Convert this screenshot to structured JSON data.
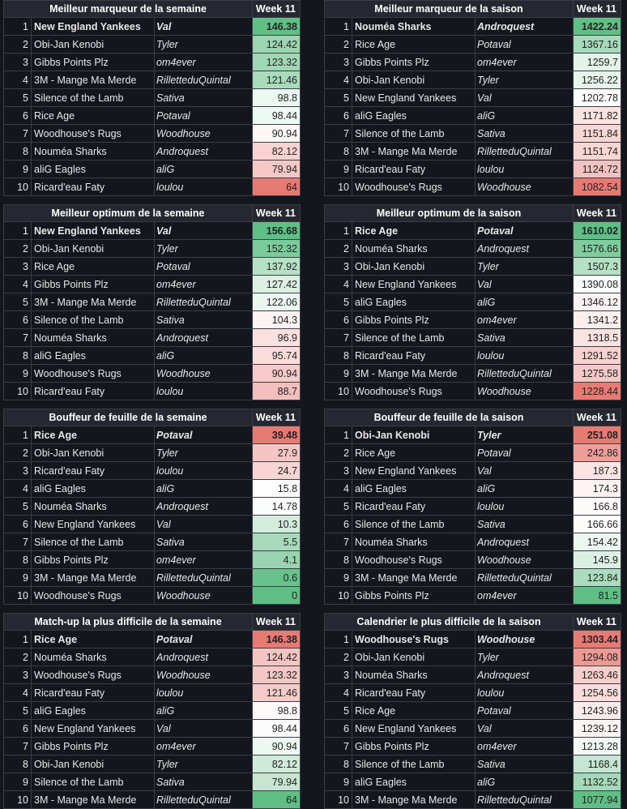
{
  "tables": [
    {
      "title": "Meilleur marqueur de la semaine",
      "week": "Week 11",
      "rows": [
        {
          "rank": "1",
          "team": "New England Yankees",
          "owner": "Val",
          "value": "146.38",
          "color": "#5fbf85"
        },
        {
          "rank": "2",
          "team": "Obi-Jan Kenobi",
          "owner": "Tyler",
          "value": "124.42",
          "color": "#9bd6b1"
        },
        {
          "rank": "3",
          "team": "Gibbs Points Plz",
          "owner": "om4ever",
          "value": "123.32",
          "color": "#9fd7b4"
        },
        {
          "rank": "4",
          "team": "3M - Mange Ma Merde",
          "owner": "RilletteduQuintal",
          "value": "121.46",
          "color": "#a7dbbb"
        },
        {
          "rank": "5",
          "team": "Silence of the Lamb",
          "owner": "Sativa",
          "value": "98.8",
          "color": "#eef8f2"
        },
        {
          "rank": "6",
          "team": "Rice Age",
          "owner": "Potaval",
          "value": "98.44",
          "color": "#eff9f3"
        },
        {
          "rank": "7",
          "team": "Woodhouse's Rugs",
          "owner": "Woodhouse",
          "value": "90.94",
          "color": "#fdf7f7"
        },
        {
          "rank": "8",
          "team": "Nouméa Sharks",
          "owner": "Androquest",
          "value": "82.12",
          "color": "#f8d3d2"
        },
        {
          "rank": "9",
          "team": "aliG Eagles",
          "owner": "aliG",
          "value": "79.94",
          "color": "#f5c8c6"
        },
        {
          "rank": "10",
          "team": "Ricard'eau Faty",
          "owner": "loulou",
          "value": "64",
          "color": "#e87a74"
        }
      ]
    },
    {
      "title": "Meilleur marqueur de la saison",
      "week": "Week 11",
      "rows": [
        {
          "rank": "1",
          "team": "Nouméa Sharks",
          "owner": "Androquest",
          "value": "1422.24",
          "color": "#5fbf85"
        },
        {
          "rank": "2",
          "team": "Rice Age",
          "owner": "Potaval",
          "value": "1367.16",
          "color": "#a6dabb"
        },
        {
          "rank": "3",
          "team": "Gibbs Points Plz",
          "owner": "om4ever",
          "value": "1259.7",
          "color": "#e3f3e9"
        },
        {
          "rank": "4",
          "team": "Obi-Jan Kenobi",
          "owner": "Tyler",
          "value": "1256.22",
          "color": "#e6f5ec"
        },
        {
          "rank": "5",
          "team": "New England Yankees",
          "owner": "Val",
          "value": "1202.78",
          "color": "#fefcfc"
        },
        {
          "rank": "6",
          "team": "aliG Eagles",
          "owner": "aliG",
          "value": "1171.82",
          "color": "#fbe3e2"
        },
        {
          "rank": "7",
          "team": "Silence of the Lamb",
          "owner": "Sativa",
          "value": "1151.84",
          "color": "#f8d6d4"
        },
        {
          "rank": "8",
          "team": "3M - Mange Ma Merde",
          "owner": "RilletteduQuintal",
          "value": "1151.74",
          "color": "#f8d6d4"
        },
        {
          "rank": "9",
          "team": "Ricard'eau Faty",
          "owner": "loulou",
          "value": "1124.72",
          "color": "#f3c2c0"
        },
        {
          "rank": "10",
          "team": "Woodhouse's Rugs",
          "owner": "Woodhouse",
          "value": "1082.54",
          "color": "#e87a74"
        }
      ]
    },
    {
      "title": "Meilleur optimum de la semaine",
      "week": "Week 11",
      "rows": [
        {
          "rank": "1",
          "team": "New England Yankees",
          "owner": "Val",
          "value": "156.68",
          "color": "#5fbf85"
        },
        {
          "rank": "2",
          "team": "Obi-Jan Kenobi",
          "owner": "Tyler",
          "value": "152.32",
          "color": "#7acb9a"
        },
        {
          "rank": "3",
          "team": "Rice Age",
          "owner": "Potaval",
          "value": "137.92",
          "color": "#b7e1c7"
        },
        {
          "rank": "4",
          "team": "Gibbs Points Plz",
          "owner": "om4ever",
          "value": "127.42",
          "color": "#dcefe3"
        },
        {
          "rank": "5",
          "team": "3M - Mange Ma Merde",
          "owner": "RilletteduQuintal",
          "value": "122.06",
          "color": "#eaf6ef"
        },
        {
          "rank": "6",
          "team": "Silence of the Lamb",
          "owner": "Sativa",
          "value": "104.3",
          "color": "#fdf3f3"
        },
        {
          "rank": "7",
          "team": "Nouméa Sharks",
          "owner": "Androquest",
          "value": "96.9",
          "color": "#fbe0df"
        },
        {
          "rank": "8",
          "team": "aliG Eagles",
          "owner": "aliG",
          "value": "95.74",
          "color": "#fadcdb"
        },
        {
          "rank": "9",
          "team": "Woodhouse's Rugs",
          "owner": "Woodhouse",
          "value": "90.94",
          "color": "#f5cac8"
        },
        {
          "rank": "10",
          "team": "Ricard'eau Faty",
          "owner": "loulou",
          "value": "88.7",
          "color": "#f2bfbd"
        }
      ]
    },
    {
      "title": "Meilleur optimum de la saison",
      "week": "Week 11",
      "rows": [
        {
          "rank": "1",
          "team": "Rice Age",
          "owner": "Potaval",
          "value": "1610.02",
          "color": "#5fbf85"
        },
        {
          "rank": "2",
          "team": "Nouméa Sharks",
          "owner": "Androquest",
          "value": "1576.66",
          "color": "#7fcd9d"
        },
        {
          "rank": "3",
          "team": "Obi-Jan Kenobi",
          "owner": "Tyler",
          "value": "1507.3",
          "color": "#b6e0c6"
        },
        {
          "rank": "4",
          "team": "New England Yankees",
          "owner": "Val",
          "value": "1390.08",
          "color": "#f6fbf8"
        },
        {
          "rank": "5",
          "team": "aliG Eagles",
          "owner": "aliG",
          "value": "1346.12",
          "color": "#fdf2f2"
        },
        {
          "rank": "6",
          "team": "Gibbs Points Plz",
          "owner": "om4ever",
          "value": "1341.2",
          "color": "#fcefee"
        },
        {
          "rank": "7",
          "team": "Silence of the Lamb",
          "owner": "Sativa",
          "value": "1318.5",
          "color": "#fae3e2"
        },
        {
          "rank": "8",
          "team": "Ricard'eau Faty",
          "owner": "loulou",
          "value": "1291.52",
          "color": "#f7d2d0"
        },
        {
          "rank": "9",
          "team": "3M - Mange Ma Merde",
          "owner": "RilletteduQuintal",
          "value": "1275.58",
          "color": "#f5c8c6"
        },
        {
          "rank": "10",
          "team": "Woodhouse's Rugs",
          "owner": "Woodhouse",
          "value": "1228.44",
          "color": "#e87a74"
        }
      ]
    },
    {
      "title": "Bouffeur de feuille de la semaine",
      "week": "Week 11",
      "rows": [
        {
          "rank": "1",
          "team": "Rice Age",
          "owner": "Potaval",
          "value": "39.48",
          "color": "#e87a74"
        },
        {
          "rank": "2",
          "team": "Obi-Jan Kenobi",
          "owner": "Tyler",
          "value": "27.9",
          "color": "#f5c5c3"
        },
        {
          "rank": "3",
          "team": "Ricard'eau Faty",
          "owner": "loulou",
          "value": "24.7",
          "color": "#f8d4d2"
        },
        {
          "rank": "4",
          "team": "aliG Eagles",
          "owner": "aliG",
          "value": "15.8",
          "color": "#fefcfc"
        },
        {
          "rank": "5",
          "team": "Nouméa Sharks",
          "owner": "Androquest",
          "value": "14.78",
          "color": "#fbfdfc"
        },
        {
          "rank": "6",
          "team": "New England Yankees",
          "owner": "Val",
          "value": "10.3",
          "color": "#d4ecdd"
        },
        {
          "rank": "7",
          "team": "Silence of the Lamb",
          "owner": "Sativa",
          "value": "5.5",
          "color": "#a6dabb"
        },
        {
          "rank": "8",
          "team": "Gibbs Points Plz",
          "owner": "om4ever",
          "value": "4.1",
          "color": "#98d4af"
        },
        {
          "rank": "9",
          "team": "3M - Mange Ma Merde",
          "owner": "RilletteduQuintal",
          "value": "0.6",
          "color": "#68c28b"
        },
        {
          "rank": "10",
          "team": "Woodhouse's Rugs",
          "owner": "Woodhouse",
          "value": "0",
          "color": "#5fbf85"
        }
      ]
    },
    {
      "title": "Bouffeur de feuille de la saison",
      "week": "Week 11",
      "rows": [
        {
          "rank": "1",
          "team": "Obi-Jan Kenobi",
          "owner": "Tyler",
          "value": "251.08",
          "color": "#e87a74"
        },
        {
          "rank": "2",
          "team": "Rice Age",
          "owner": "Potaval",
          "value": "242.86",
          "color": "#ee9e99"
        },
        {
          "rank": "3",
          "team": "New England Yankees",
          "owner": "Val",
          "value": "187.3",
          "color": "#fbe4e3"
        },
        {
          "rank": "4",
          "team": "aliG Eagles",
          "owner": "aliG",
          "value": "174.3",
          "color": "#fdf3f3"
        },
        {
          "rank": "5",
          "team": "Ricard'eau Faty",
          "owner": "loulou",
          "value": "166.8",
          "color": "#fefafa"
        },
        {
          "rank": "6",
          "team": "Silence of the Lamb",
          "owner": "Sativa",
          "value": "166.66",
          "color": "#fefbfb"
        },
        {
          "rank": "7",
          "team": "Nouméa Sharks",
          "owner": "Androquest",
          "value": "154.42",
          "color": "#ecf7f0"
        },
        {
          "rank": "8",
          "team": "Woodhouse's Rugs",
          "owner": "Woodhouse",
          "value": "145.9",
          "color": "#dbf0e3"
        },
        {
          "rank": "9",
          "team": "3M - Mange Ma Merde",
          "owner": "RilletteduQuintal",
          "value": "123.84",
          "color": "#acdcbf"
        },
        {
          "rank": "10",
          "team": "Gibbs Points Plz",
          "owner": "om4ever",
          "value": "81.5",
          "color": "#5fbf85"
        }
      ]
    },
    {
      "title": "Match-up la plus difficile de la semaine",
      "week": "Week 11",
      "rows": [
        {
          "rank": "1",
          "team": "Rice Age",
          "owner": "Potaval",
          "value": "146.38",
          "color": "#e87a74"
        },
        {
          "rank": "2",
          "team": "Nouméa Sharks",
          "owner": "Androquest",
          "value": "124.42",
          "color": "#f4c4c2"
        },
        {
          "rank": "3",
          "team": "Woodhouse's Rugs",
          "owner": "Woodhouse",
          "value": "123.32",
          "color": "#f4c7c5"
        },
        {
          "rank": "4",
          "team": "Ricard'eau Faty",
          "owner": "loulou",
          "value": "121.46",
          "color": "#f5cbc9"
        },
        {
          "rank": "5",
          "team": "aliG Eagles",
          "owner": "aliG",
          "value": "98.8",
          "color": "#fefafa"
        },
        {
          "rank": "6",
          "team": "New England Yankees",
          "owner": "Val",
          "value": "98.44",
          "color": "#fefbfb"
        },
        {
          "rank": "7",
          "team": "Gibbs Points Plz",
          "owner": "om4ever",
          "value": "90.94",
          "color": "#edf8f1"
        },
        {
          "rank": "8",
          "team": "Obi-Jan Kenobi",
          "owner": "Tyler",
          "value": "82.12",
          "color": "#cfeada"
        },
        {
          "rank": "9",
          "team": "Silence of the Lamb",
          "owner": "Sativa",
          "value": "79.94",
          "color": "#c6e6d2"
        },
        {
          "rank": "10",
          "team": "3M - Mange Ma Merde",
          "owner": "RilletteduQuintal",
          "value": "64",
          "color": "#5fbf85"
        }
      ]
    },
    {
      "title": "Calendrier le plus difficile de la saison",
      "week": "Week 11",
      "rows": [
        {
          "rank": "1",
          "team": "Woodhouse's Rugs",
          "owner": "Woodhouse",
          "value": "1303.44",
          "color": "#e87a74"
        },
        {
          "rank": "2",
          "team": "Obi-Jan Kenobi",
          "owner": "Tyler",
          "value": "1294.08",
          "color": "#ed9994"
        },
        {
          "rank": "3",
          "team": "Nouméa Sharks",
          "owner": "Androquest",
          "value": "1263.46",
          "color": "#f6cfcd"
        },
        {
          "rank": "4",
          "team": "Ricard'eau Faty",
          "owner": "loulou",
          "value": "1254.56",
          "color": "#f9dcdb"
        },
        {
          "rank": "5",
          "team": "Rice Age",
          "owner": "Potaval",
          "value": "1243.96",
          "color": "#fcedec"
        },
        {
          "rank": "6",
          "team": "New England Yankees",
          "owner": "Val",
          "value": "1239.12",
          "color": "#fdf4f4"
        },
        {
          "rank": "7",
          "team": "Gibbs Points Plz",
          "owner": "om4ever",
          "value": "1213.28",
          "color": "#f1f9f4"
        },
        {
          "rank": "8",
          "team": "Silence of the Lamb",
          "owner": "Sativa",
          "value": "1168.4",
          "color": "#c5e6d2"
        },
        {
          "rank": "9",
          "team": "aliG Eagles",
          "owner": "aliG",
          "value": "1132.52",
          "color": "#a3d9b8"
        },
        {
          "rank": "10",
          "team": "3M - Mange Ma Merde",
          "owner": "RilletteduQuintal",
          "value": "1077.94",
          "color": "#5fbf85"
        }
      ]
    }
  ]
}
